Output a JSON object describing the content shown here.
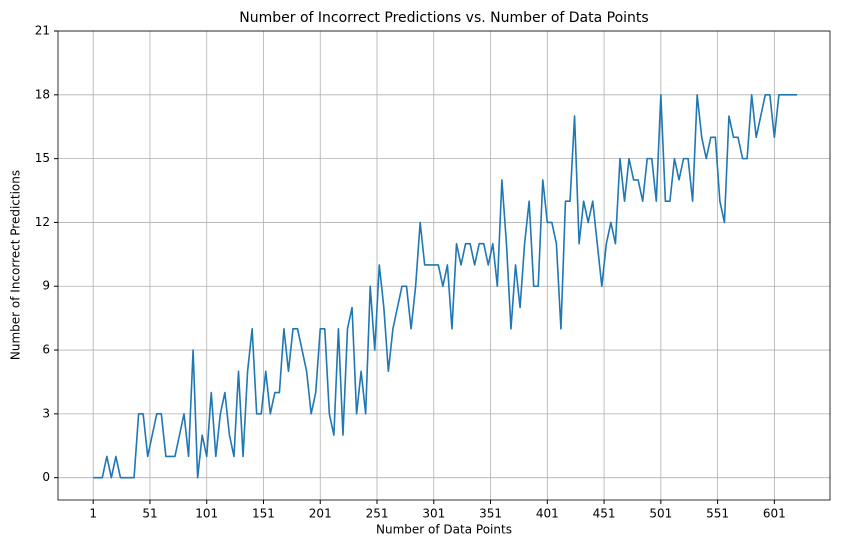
{
  "chart_data": {
    "type": "line",
    "title": "Number of Incorrect Predictions vs. Number of Data Points",
    "x_label": "Number of Data Points",
    "y_label": "Number of Incorrect Predictions",
    "x": [
      1,
      5,
      9,
      13,
      17,
      21,
      25,
      29,
      33,
      37,
      41,
      45,
      49,
      53,
      57,
      61,
      65,
      69,
      73,
      77,
      81,
      85,
      89,
      93,
      97,
      101,
      105,
      109,
      113,
      117,
      121,
      125,
      129,
      133,
      137,
      141,
      145,
      149,
      153,
      157,
      161,
      165,
      169,
      173,
      177,
      181,
      185,
      189,
      193,
      197,
      201,
      205,
      209,
      213,
      217,
      221,
      225,
      229,
      233,
      237,
      241,
      245,
      249,
      253,
      257,
      261,
      265,
      269,
      273,
      277,
      281,
      285,
      289,
      293,
      297,
      301,
      305,
      309,
      313,
      317,
      321,
      325,
      329,
      333,
      337,
      341,
      345,
      349,
      353,
      357,
      361,
      365,
      369,
      373,
      377,
      381,
      385,
      389,
      393,
      397,
      401,
      405,
      409,
      413,
      417,
      421,
      425,
      429,
      433,
      437,
      441,
      445,
      449,
      453,
      457,
      461,
      465,
      469,
      473,
      477,
      481,
      485,
      489,
      493,
      497,
      501,
      505,
      509,
      513,
      517,
      521,
      525,
      529,
      533,
      537,
      541,
      545,
      549,
      553,
      557,
      561,
      565,
      569,
      573,
      577,
      581,
      585,
      589,
      593,
      597,
      601,
      605,
      609,
      613,
      617,
      621
    ],
    "series": [
      {
        "color": "#1f77b4",
        "values": [
          0,
          0,
          0,
          1,
          0,
          1,
          0,
          0,
          0,
          0,
          3,
          3,
          1,
          2,
          3,
          3,
          1,
          1,
          1,
          2,
          3,
          1,
          6,
          0,
          2,
          1,
          4,
          1,
          3,
          4,
          2,
          1,
          5,
          1,
          5,
          7,
          3,
          3,
          5,
          3,
          4,
          4,
          7,
          5,
          7,
          7,
          6,
          5,
          3,
          4,
          7,
          7,
          3,
          2,
          7,
          2,
          7,
          8,
          3,
          5,
          3,
          9,
          6,
          10,
          8,
          5,
          7,
          8,
          9,
          9,
          7,
          9,
          12,
          10,
          10,
          10,
          10,
          9,
          10,
          7,
          11,
          10,
          11,
          11,
          10,
          11,
          11,
          10,
          11,
          9,
          14,
          11,
          7,
          10,
          8,
          11,
          13,
          9,
          9,
          14,
          12,
          12,
          11,
          7,
          13,
          13,
          17,
          11,
          13,
          12,
          13,
          11,
          9,
          11,
          12,
          11,
          15,
          13,
          15,
          14,
          14,
          13,
          15,
          15,
          13,
          18,
          13,
          13,
          15,
          14,
          15,
          15,
          13,
          18,
          16,
          15,
          16,
          16,
          13,
          12,
          17,
          16,
          16,
          15,
          15,
          18,
          16,
          17,
          18,
          18,
          16,
          18,
          18,
          18,
          18,
          18
        ]
      }
    ],
    "xlim": [
      -30,
      650
    ],
    "ylim": [
      -1.05,
      21
    ],
    "xticks": [
      1,
      51,
      101,
      151,
      201,
      251,
      301,
      351,
      401,
      451,
      501,
      551,
      601
    ],
    "yticks": [
      0,
      3,
      6,
      9,
      12,
      15,
      18,
      21
    ],
    "grid": true
  }
}
